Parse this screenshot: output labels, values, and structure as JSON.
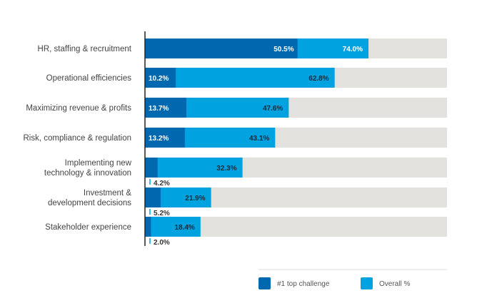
{
  "chart_data": {
    "type": "bar",
    "orientation": "horizontal",
    "stacked": "overlay",
    "categories": [
      [
        "HR, staffing & recruitment"
      ],
      [
        "Operational efficiencies"
      ],
      [
        "Maximizing revenue & profits"
      ],
      [
        "Risk, compliance & regulation"
      ],
      [
        "Implementing new",
        "technology & innovation"
      ],
      [
        "Investment &",
        "development decisions"
      ],
      [
        "Stakeholder experience"
      ]
    ],
    "series": [
      {
        "name": "#1 top challenge",
        "color": "#0068ae",
        "values": [
          50.5,
          10.2,
          13.7,
          13.2,
          4.2,
          5.2,
          2.0
        ],
        "labels": [
          "50.5%",
          "10.2%",
          "13.7%",
          "13.2%",
          "4.2%",
          "5.2%",
          "2.0%"
        ]
      },
      {
        "name": "Overall %",
        "color": "#00a3e0",
        "values": [
          74.0,
          62.8,
          47.6,
          43.1,
          32.3,
          21.9,
          18.4
        ],
        "labels": [
          "74.0%",
          "62.8%",
          "47.6%",
          "43.1%",
          "32.3%",
          "21.9%",
          "18.4%"
        ]
      }
    ],
    "background_color": "#e3e1de",
    "xlim": [
      0,
      100
    ],
    "grid": false,
    "legend": "bottom-right"
  }
}
